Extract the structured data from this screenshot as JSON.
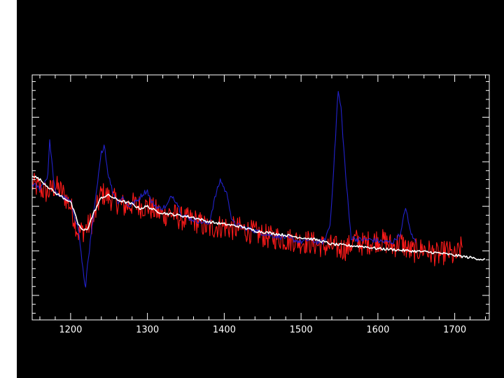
{
  "chart_data": {
    "type": "line",
    "title": "",
    "xlabel": "",
    "ylabel": "",
    "xlim": [
      1150,
      1745
    ],
    "ylim": [
      -0.55,
      4.95
    ],
    "x_ticks": [
      1200,
      1300,
      1400,
      1500,
      1600,
      1700
    ],
    "x_tick_labels": [
      "1200",
      "1300",
      "1400",
      "1500",
      "1600",
      "1700"
    ],
    "y_tick_labels": [],
    "grid": false,
    "legend": "none",
    "colors": {
      "background": "#000000",
      "axes": "#ffffff",
      "observed_spectrum": "#ff1a1a",
      "emission_excess": "#2222cc",
      "continuum_model": "#ffffff"
    },
    "series": [
      {
        "color": "#ff1a1a",
        "style": "noisy",
        "x": [
          1150,
          1160,
          1170,
          1180,
          1190,
          1200,
          1210,
          1220,
          1230,
          1240,
          1250,
          1260,
          1270,
          1280,
          1290,
          1300,
          1310,
          1320,
          1330,
          1340,
          1350,
          1360,
          1370,
          1380,
          1390,
          1400,
          1410,
          1420,
          1430,
          1440,
          1450,
          1460,
          1470,
          1480,
          1490,
          1500,
          1510,
          1520,
          1530,
          1540,
          1550,
          1560,
          1570,
          1580,
          1590,
          1600,
          1610,
          1620,
          1630,
          1640,
          1650,
          1660,
          1670,
          1680,
          1690,
          1700,
          1710
        ],
        "y": [
          2.5,
          2.4,
          2.3,
          2.45,
          2.3,
          2.0,
          1.4,
          1.5,
          1.7,
          2.3,
          2.2,
          2.1,
          2.0,
          2.05,
          2.0,
          2.0,
          1.9,
          1.8,
          1.85,
          1.75,
          1.7,
          1.7,
          1.6,
          1.5,
          1.55,
          1.55,
          1.5,
          1.5,
          1.45,
          1.4,
          1.35,
          1.3,
          1.3,
          1.25,
          1.25,
          1.2,
          1.2,
          1.15,
          1.1,
          1.1,
          1.05,
          1.05,
          1.25,
          1.15,
          1.2,
          1.25,
          1.2,
          1.1,
          1.2,
          1.0,
          1.0,
          1.05,
          0.95,
          0.9,
          1.0,
          0.85,
          1.1
        ]
      },
      {
        "color": "#2222cc",
        "style": "smooth",
        "x": [
          1150,
          1160,
          1170,
          1173,
          1176,
          1180,
          1190,
          1200,
          1210,
          1216,
          1219,
          1222,
          1230,
          1235,
          1240,
          1244,
          1248,
          1255,
          1262,
          1268,
          1275,
          1285,
          1295,
          1300,
          1305,
          1315,
          1325,
          1332,
          1338,
          1345,
          1360,
          1380,
          1388,
          1395,
          1400,
          1405,
          1410,
          1420,
          1440,
          1460,
          1480,
          1500,
          1510,
          1520,
          1530,
          1538,
          1545,
          1548,
          1552,
          1558,
          1565,
          1575,
          1590,
          1610,
          1620,
          1630,
          1636,
          1640,
          1645,
          1650
        ],
        "y": [
          2.5,
          2.4,
          2.65,
          3.5,
          2.9,
          2.3,
          2.2,
          2.1,
          1.5,
          0.6,
          0.1,
          0.7,
          1.8,
          2.5,
          3.2,
          3.4,
          2.8,
          2.3,
          2.1,
          2.2,
          2.0,
          2.1,
          2.3,
          2.35,
          2.1,
          1.95,
          2.0,
          2.25,
          2.1,
          1.8,
          1.7,
          1.6,
          2.2,
          2.6,
          2.4,
          2.2,
          1.65,
          1.55,
          1.45,
          1.35,
          1.3,
          1.2,
          1.25,
          1.2,
          1.2,
          1.6,
          3.6,
          4.6,
          4.2,
          2.7,
          1.3,
          1.25,
          1.25,
          1.2,
          1.2,
          1.4,
          2.0,
          1.6,
          1.3,
          1.2
        ]
      },
      {
        "color": "#ffffff",
        "style": "smooth",
        "x": [
          1150,
          1160,
          1170,
          1180,
          1190,
          1200,
          1210,
          1216,
          1222,
          1230,
          1240,
          1250,
          1260,
          1270,
          1280,
          1290,
          1300,
          1310,
          1320,
          1340,
          1360,
          1380,
          1400,
          1420,
          1440,
          1460,
          1480,
          1500,
          1520,
          1540,
          1560,
          1580,
          1600,
          1620,
          1640,
          1660,
          1680,
          1700,
          1720,
          1740
        ],
        "y": [
          2.7,
          2.6,
          2.45,
          2.3,
          2.2,
          2.1,
          1.6,
          1.45,
          1.5,
          1.85,
          2.2,
          2.25,
          2.15,
          2.1,
          2.05,
          1.95,
          2.0,
          1.9,
          1.85,
          1.8,
          1.75,
          1.65,
          1.6,
          1.55,
          1.45,
          1.4,
          1.35,
          1.3,
          1.25,
          1.15,
          1.12,
          1.1,
          1.05,
          1.03,
          1.0,
          0.98,
          0.95,
          0.9,
          0.85,
          0.8
        ]
      }
    ]
  }
}
